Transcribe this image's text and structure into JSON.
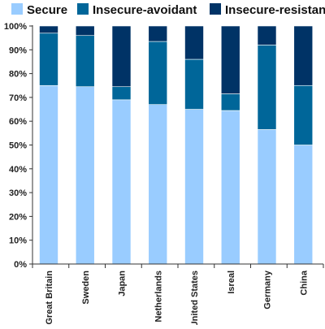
{
  "chart_data": {
    "type": "bar",
    "stacked": true,
    "categories": [
      "Great Britain",
      "Sweden",
      "Japan",
      "Netherlands",
      "United States",
      "Isreal",
      "Germany",
      "China"
    ],
    "series": [
      {
        "name": "Secure",
        "color": "#99ccff",
        "values": [
          75,
          74.5,
          69,
          67,
          65,
          64.5,
          56.5,
          50
        ]
      },
      {
        "name": "Insecure-avoidant",
        "color": "#006699",
        "values": [
          22,
          21.5,
          5.5,
          26.5,
          21,
          7,
          35.5,
          25
        ]
      },
      {
        "name": "Insecure-resistant",
        "color": "#003366",
        "values": [
          3,
          4,
          25.5,
          6.5,
          14,
          28.5,
          8,
          25
        ]
      }
    ],
    "y_ticks": [
      "0%",
      "10%",
      "20%",
      "30%",
      "40%",
      "50%",
      "60%",
      "70%",
      "80%",
      "90%",
      "100%"
    ],
    "ylim": [
      0,
      100
    ],
    "legend_position": "top",
    "grid": false
  }
}
